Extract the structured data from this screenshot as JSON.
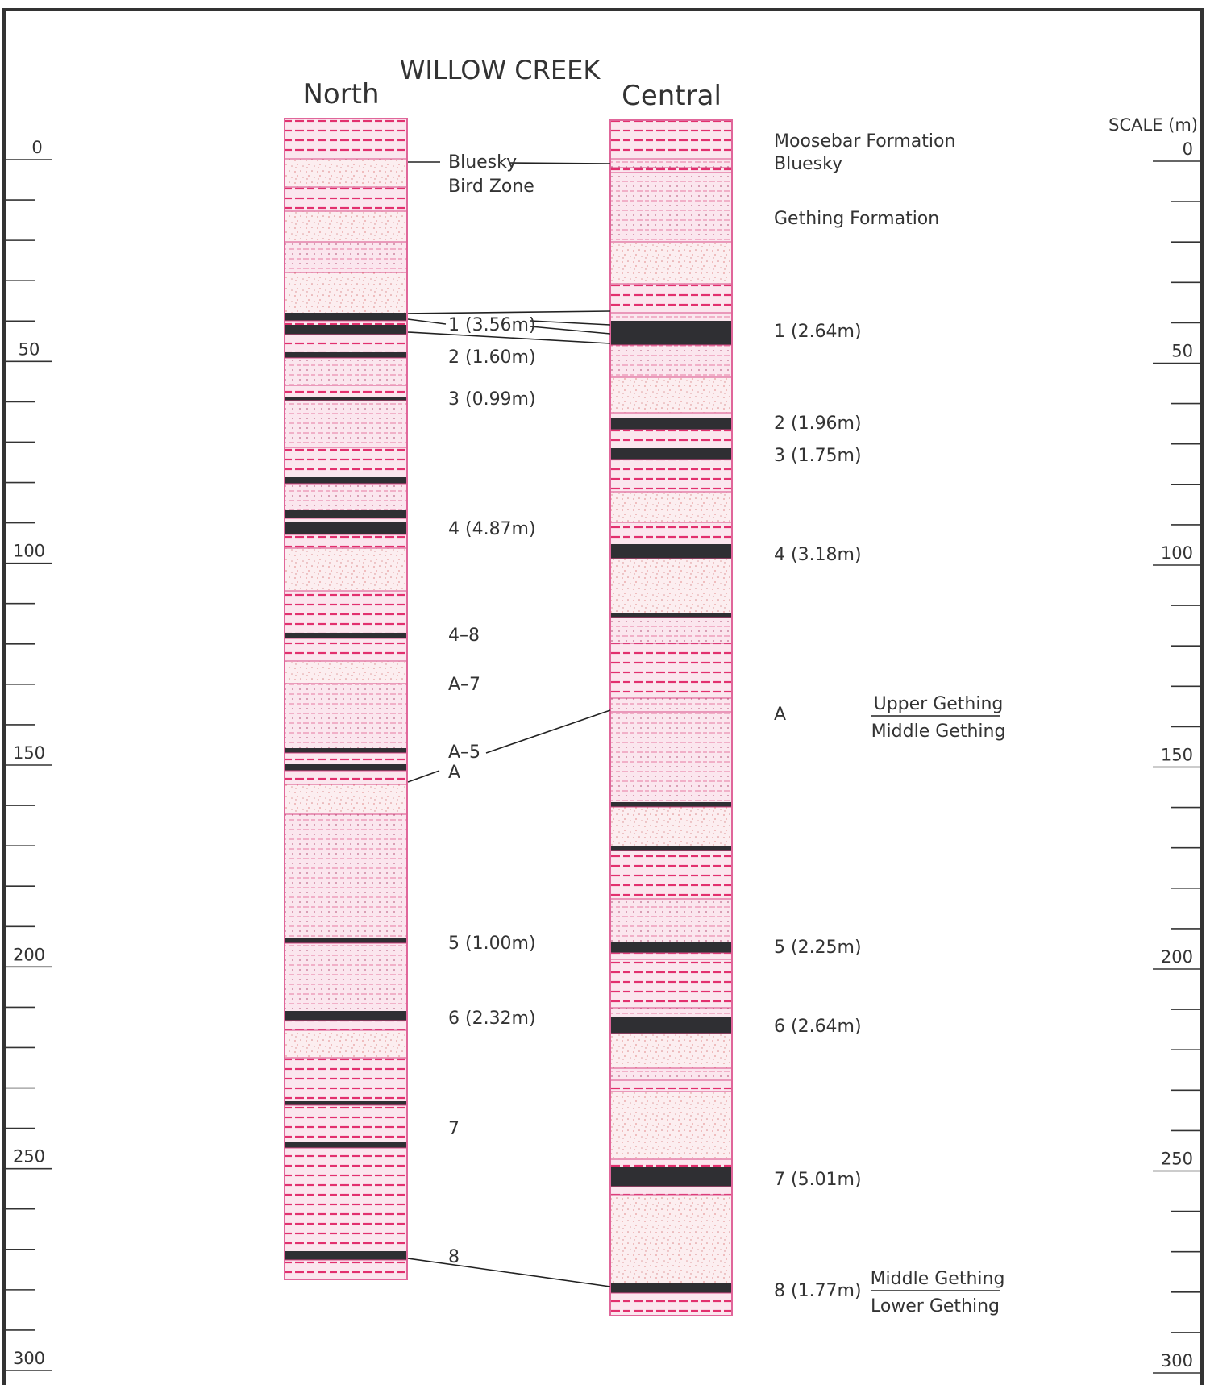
{
  "title": "WILLOW CREEK",
  "scale_title": "SCALE (m)",
  "colors": {
    "column_fill": "#fbe6ee",
    "column_border": "#e0669a",
    "shale_dash": "#e2306e",
    "siltstone_dot": "#c06a8a",
    "sandstone_speckle": "#e89a9a",
    "coal": "#2f2f33",
    "text": "#333333",
    "line": "#222222"
  },
  "scale_ticks": [
    "0",
    "50",
    "100",
    "150",
    "200",
    "250",
    "300"
  ],
  "columns": {
    "north": {
      "heading": "North",
      "labels": [
        {
          "key": "n-bluesky",
          "text": "Bluesky",
          "depth": 4
        },
        {
          "key": "n-birdzone",
          "text": "Bird Zone",
          "depth": 10
        },
        {
          "key": "n-seam1",
          "text": "1 (3.56m)",
          "depth": 39
        },
        {
          "key": "n-seam2",
          "text": "2 (1.60m)",
          "depth": 47
        },
        {
          "key": "n-seam3",
          "text": "3 (0.99m)",
          "depth": 57
        },
        {
          "key": "n-seam4",
          "text": "4 (4.87m)",
          "depth": 89
        },
        {
          "key": "n-4-8",
          "text": "4–8",
          "depth": 115
        },
        {
          "key": "n-a7",
          "text": "A–7",
          "depth": 127
        },
        {
          "key": "n-a5",
          "text": "A–5",
          "depth": 146
        },
        {
          "key": "n-a",
          "text": "A",
          "depth": 151
        },
        {
          "key": "n-seam5",
          "text": "5 (1.00m)",
          "depth": 195
        },
        {
          "key": "n-seam6",
          "text": "6 (2.32m)",
          "depth": 213
        },
        {
          "key": "n-seam7",
          "text": "7",
          "depth": 240
        },
        {
          "key": "n-seam8",
          "text": "8",
          "depth": 271
        }
      ]
    },
    "central": {
      "heading": "Central",
      "labels": [
        {
          "key": "c-moosebar",
          "text": "Moosebar Formation",
          "depth": -1
        },
        {
          "key": "c-bluesky",
          "text": "Bluesky",
          "depth": 5
        },
        {
          "key": "c-gething",
          "text": "Gething Formation",
          "depth": 18
        },
        {
          "key": "c-seam1",
          "text": "1 (2.64m)",
          "depth": 44
        },
        {
          "key": "c-seam2",
          "text": "2 (1.96m)",
          "depth": 67
        },
        {
          "key": "c-seam3",
          "text": "3 (1.75m)",
          "depth": 75
        },
        {
          "key": "c-seam4",
          "text": "4 (3.18m)",
          "depth": 105
        },
        {
          "key": "c-a",
          "text": "A",
          "depth": 144
        },
        {
          "key": "c-seam5",
          "text": "5 (2.25m)",
          "depth": 201
        },
        {
          "key": "c-seam6",
          "text": "6 (2.64m)",
          "depth": 220
        },
        {
          "key": "c-seam7",
          "text": "7 (5.01m)",
          "depth": 257
        },
        {
          "key": "c-seam8",
          "text": "8 (1.77m)",
          "depth": 283
        }
      ]
    }
  },
  "contacts": [
    {
      "key": "upper-middle",
      "above": "Upper Gething",
      "below": "Middle Gething",
      "depth": 144
    },
    {
      "key": "middle-lower",
      "above": "Middle Gething",
      "below": "Lower Gething",
      "depth": 283
    }
  ]
}
